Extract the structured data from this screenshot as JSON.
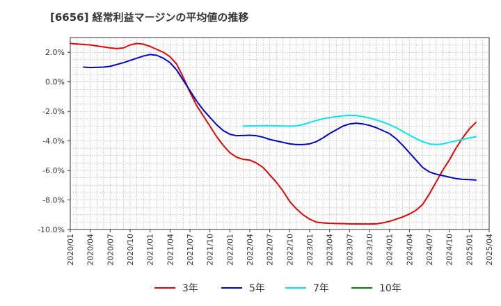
{
  "chart_data": {
    "type": "line",
    "title": "[6656]  経常利益マージンの平均値の推移",
    "xlabel": "",
    "ylabel": "",
    "ylim": [
      -10,
      3
    ],
    "y_ticks": [
      2,
      0,
      -2,
      -4,
      -6,
      -8,
      -10
    ],
    "y_tick_labels": [
      "2.0%",
      "0.0%",
      "-2.0%",
      "-4.0%",
      "-6.0%",
      "-8.0%",
      "-10.0%"
    ],
    "x_tick_labels": [
      "2020/01",
      "2020/04",
      "2020/07",
      "2020/10",
      "2021/01",
      "2021/04",
      "2021/07",
      "2021/10",
      "2022/01",
      "2022/04",
      "2022/07",
      "2022/10",
      "2023/01",
      "2023/04",
      "2023/07",
      "2023/10",
      "2024/01",
      "2024/04",
      "2024/07",
      "2024/10",
      "2025/01",
      "2025/04"
    ],
    "grid": true,
    "legend_position": "bottom",
    "series": [
      {
        "name": "3年",
        "color": "#e00000",
        "points": [
          [
            "2020/01",
            2.6
          ],
          [
            "2020/04",
            2.5
          ],
          [
            "2020/07",
            2.3
          ],
          [
            "2020/08",
            2.25
          ],
          [
            "2020/09",
            2.3
          ],
          [
            "2020/10",
            2.5
          ],
          [
            "2020/11",
            2.6
          ],
          [
            "2020/12",
            2.55
          ],
          [
            "2021/01",
            2.4
          ],
          [
            "2021/02",
            2.2
          ],
          [
            "2021/03",
            2.0
          ],
          [
            "2021/04",
            1.7
          ],
          [
            "2021/05",
            1.2
          ],
          [
            "2021/06",
            0.3
          ],
          [
            "2021/07",
            -0.7
          ],
          [
            "2021/08",
            -1.6
          ],
          [
            "2021/09",
            -2.3
          ],
          [
            "2021/10",
            -3.0
          ],
          [
            "2021/11",
            -3.7
          ],
          [
            "2021/12",
            -4.3
          ],
          [
            "2022/01",
            -4.8
          ],
          [
            "2022/02",
            -5.1
          ],
          [
            "2022/03",
            -5.25
          ],
          [
            "2022/04",
            -5.3
          ],
          [
            "2022/05",
            -5.5
          ],
          [
            "2022/06",
            -5.8
          ],
          [
            "2022/07",
            -6.3
          ],
          [
            "2022/08",
            -6.8
          ],
          [
            "2022/09",
            -7.4
          ],
          [
            "2022/10",
            -8.1
          ],
          [
            "2022/11",
            -8.6
          ],
          [
            "2022/12",
            -9.0
          ],
          [
            "2023/01",
            -9.3
          ],
          [
            "2023/02",
            -9.5
          ],
          [
            "2023/03",
            -9.55
          ],
          [
            "2023/04",
            -9.58
          ],
          [
            "2023/07",
            -9.62
          ],
          [
            "2023/10",
            -9.63
          ],
          [
            "2023/11",
            -9.62
          ],
          [
            "2023/12",
            -9.55
          ],
          [
            "2024/01",
            -9.45
          ],
          [
            "2024/02",
            -9.3
          ],
          [
            "2024/03",
            -9.15
          ],
          [
            "2024/04",
            -8.95
          ],
          [
            "2024/05",
            -8.7
          ],
          [
            "2024/06",
            -8.3
          ],
          [
            "2024/07",
            -7.6
          ],
          [
            "2024/08",
            -6.8
          ],
          [
            "2024/09",
            -6.0
          ],
          [
            "2024/10",
            -5.3
          ],
          [
            "2024/11",
            -4.5
          ],
          [
            "2024/12",
            -3.8
          ],
          [
            "2025/01",
            -3.2
          ],
          [
            "2025/02",
            -2.75
          ]
        ]
      },
      {
        "name": "5年",
        "color": "#0000c0",
        "points": [
          [
            "2020/03",
            1.0
          ],
          [
            "2020/04",
            0.97
          ],
          [
            "2020/06",
            1.0
          ],
          [
            "2020/07",
            1.05
          ],
          [
            "2020/09",
            1.3
          ],
          [
            "2020/10",
            1.45
          ],
          [
            "2020/11",
            1.6
          ],
          [
            "2020/12",
            1.75
          ],
          [
            "2021/01",
            1.85
          ],
          [
            "2021/02",
            1.8
          ],
          [
            "2021/03",
            1.6
          ],
          [
            "2021/04",
            1.3
          ],
          [
            "2021/05",
            0.8
          ],
          [
            "2021/06",
            0.1
          ],
          [
            "2021/07",
            -0.6
          ],
          [
            "2021/08",
            -1.3
          ],
          [
            "2021/09",
            -1.9
          ],
          [
            "2021/10",
            -2.4
          ],
          [
            "2021/11",
            -2.9
          ],
          [
            "2021/12",
            -3.3
          ],
          [
            "2022/01",
            -3.55
          ],
          [
            "2022/02",
            -3.65
          ],
          [
            "2022/04",
            -3.62
          ],
          [
            "2022/05",
            -3.65
          ],
          [
            "2022/06",
            -3.75
          ],
          [
            "2022/07",
            -3.9
          ],
          [
            "2022/08",
            -4.0
          ],
          [
            "2022/09",
            -4.1
          ],
          [
            "2022/10",
            -4.2
          ],
          [
            "2022/11",
            -4.25
          ],
          [
            "2022/12",
            -4.25
          ],
          [
            "2023/01",
            -4.2
          ],
          [
            "2023/02",
            -4.05
          ],
          [
            "2023/03",
            -3.8
          ],
          [
            "2023/04",
            -3.5
          ],
          [
            "2023/05",
            -3.25
          ],
          [
            "2023/06",
            -3.0
          ],
          [
            "2023/07",
            -2.85
          ],
          [
            "2023/08",
            -2.8
          ],
          [
            "2023/09",
            -2.85
          ],
          [
            "2023/10",
            -2.95
          ],
          [
            "2023/11",
            -3.1
          ],
          [
            "2023/12",
            -3.3
          ],
          [
            "2024/01",
            -3.5
          ],
          [
            "2024/02",
            -3.85
          ],
          [
            "2024/03",
            -4.3
          ],
          [
            "2024/04",
            -4.8
          ],
          [
            "2024/05",
            -5.3
          ],
          [
            "2024/06",
            -5.8
          ],
          [
            "2024/07",
            -6.1
          ],
          [
            "2024/08",
            -6.25
          ],
          [
            "2024/09",
            -6.35
          ],
          [
            "2024/10",
            -6.45
          ],
          [
            "2024/11",
            -6.55
          ],
          [
            "2024/12",
            -6.6
          ],
          [
            "2025/01",
            -6.62
          ],
          [
            "2025/02",
            -6.65
          ]
        ]
      },
      {
        "name": "7年",
        "color": "#00e5ee",
        "points": [
          [
            "2022/03",
            -3.0
          ],
          [
            "2022/04",
            -2.98
          ],
          [
            "2022/07",
            -2.97
          ],
          [
            "2022/10",
            -3.0
          ],
          [
            "2022/11",
            -2.98
          ],
          [
            "2022/12",
            -2.9
          ],
          [
            "2023/01",
            -2.75
          ],
          [
            "2023/02",
            -2.62
          ],
          [
            "2023/03",
            -2.5
          ],
          [
            "2023/04",
            -2.42
          ],
          [
            "2023/05",
            -2.35
          ],
          [
            "2023/06",
            -2.3
          ],
          [
            "2023/07",
            -2.27
          ],
          [
            "2023/08",
            -2.28
          ],
          [
            "2023/09",
            -2.35
          ],
          [
            "2023/10",
            -2.45
          ],
          [
            "2023/11",
            -2.58
          ],
          [
            "2023/12",
            -2.72
          ],
          [
            "2024/01",
            -2.9
          ],
          [
            "2024/02",
            -3.1
          ],
          [
            "2024/03",
            -3.35
          ],
          [
            "2024/04",
            -3.6
          ],
          [
            "2024/05",
            -3.85
          ],
          [
            "2024/06",
            -4.05
          ],
          [
            "2024/07",
            -4.2
          ],
          [
            "2024/08",
            -4.25
          ],
          [
            "2024/09",
            -4.2
          ],
          [
            "2024/10",
            -4.1
          ],
          [
            "2024/11",
            -4.0
          ],
          [
            "2024/12",
            -3.9
          ],
          [
            "2025/01",
            -3.8
          ],
          [
            "2025/02",
            -3.72
          ]
        ]
      },
      {
        "name": "10年",
        "color": "#008000",
        "points": []
      }
    ]
  }
}
